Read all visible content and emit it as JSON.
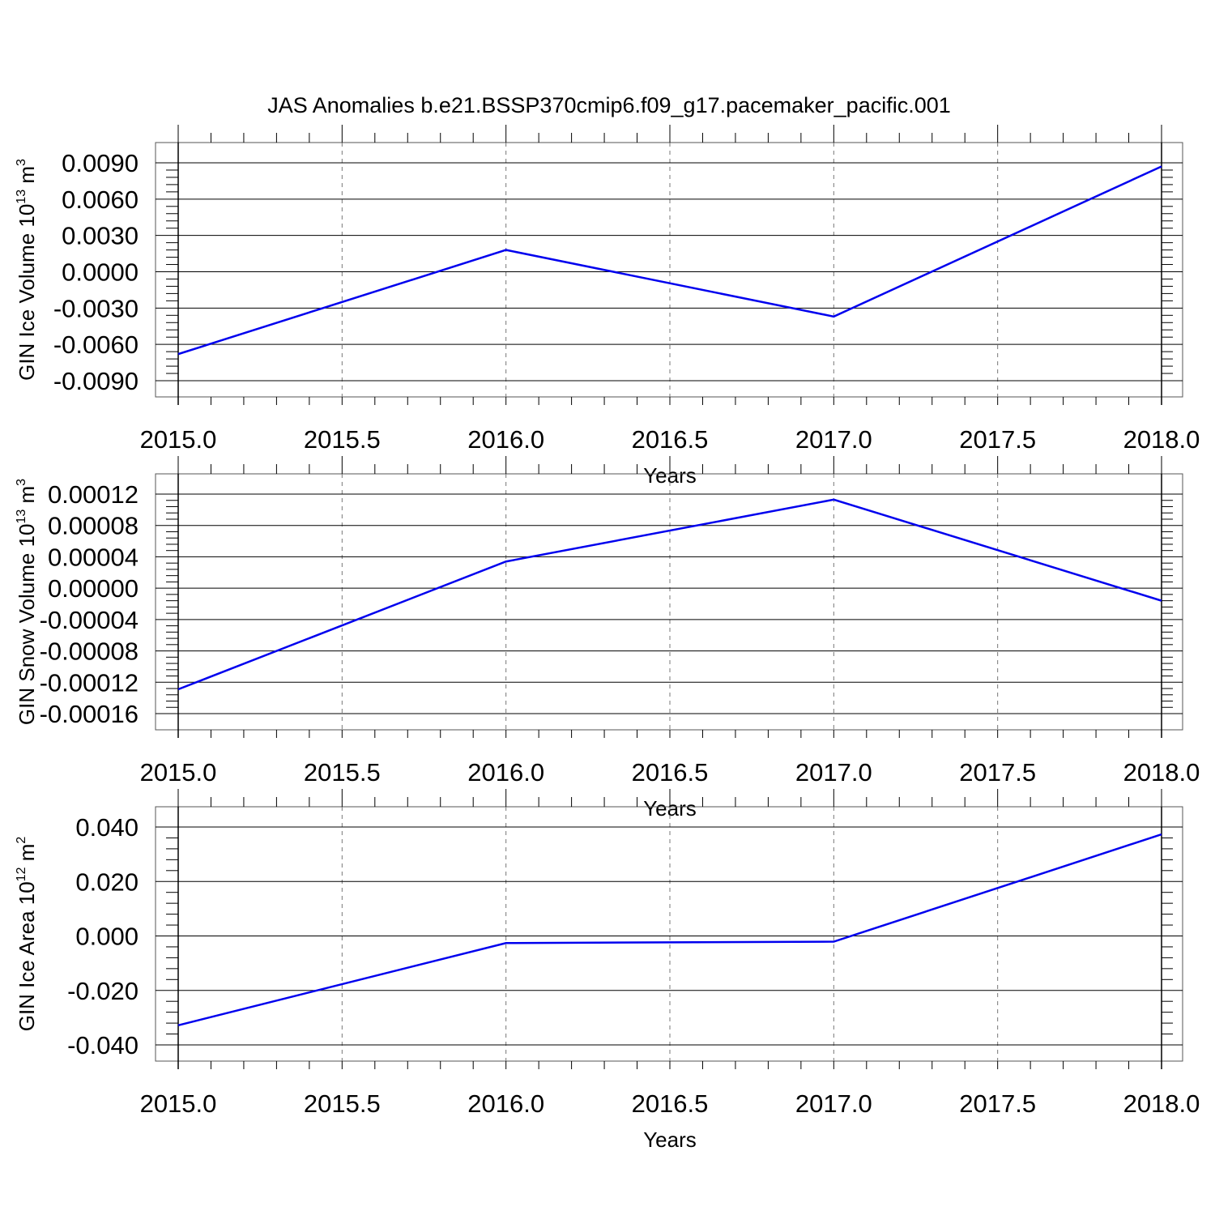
{
  "title": "JAS Anomalies b.e21.BSSP370cmip6.f09_g17.pacemaker_pacific.001",
  "line_color": "#0000ee",
  "chart_data": [
    {
      "type": "line",
      "ylabel": "GIN Ice Volume 10",
      "ylabel_exp": "13",
      "ylabel_unit": " m",
      "ylabel_unit_exp": "3",
      "xlabel": "Years",
      "xlim": [
        2015.0,
        2018.0
      ],
      "ylim": [
        -0.009,
        0.009
      ],
      "x_ticks": [
        2015.0,
        2015.5,
        2016.0,
        2016.5,
        2017.0,
        2017.5,
        2018.0
      ],
      "x_tick_labels": [
        "2015.0",
        "2015.5",
        "2016.0",
        "2016.5",
        "2017.0",
        "2017.5",
        "2018.0"
      ],
      "y_ticks": [
        0.009,
        0.006,
        0.003,
        0.0,
        -0.003,
        -0.006,
        -0.009
      ],
      "y_tick_labels": [
        "0.0090",
        "0.0060",
        "0.0030",
        "0.0000",
        "-0.0030",
        "-0.0060",
        "-0.0090"
      ],
      "grid": "x dashed",
      "x": [
        2015,
        2016,
        2017,
        2018
      ],
      "values": [
        -0.0068,
        0.0018,
        -0.0037,
        0.0087
      ]
    },
    {
      "type": "line",
      "ylabel": "GIN Snow Volume 10",
      "ylabel_exp": "13",
      "ylabel_unit": " m",
      "ylabel_unit_exp": "3",
      "xlabel": "Years",
      "xlim": [
        2015.0,
        2018.0
      ],
      "ylim": [
        -0.00016,
        0.00012
      ],
      "x_ticks": [
        2015.0,
        2015.5,
        2016.0,
        2016.5,
        2017.0,
        2017.5,
        2018.0
      ],
      "x_tick_labels": [
        "2015.0",
        "2015.5",
        "2016.0",
        "2016.5",
        "2017.0",
        "2017.5",
        "2018.0"
      ],
      "y_ticks": [
        0.00012,
        8e-05,
        4e-05,
        0.0,
        -4e-05,
        -8e-05,
        -0.00012,
        -0.00016
      ],
      "y_tick_labels": [
        "0.00012",
        "0.00008",
        "0.00004",
        "0.00000",
        "-0.00004",
        "-0.00008",
        "-0.00012",
        "-0.00016"
      ],
      "grid": "x dashed",
      "x": [
        2015,
        2016,
        2017,
        2018
      ],
      "values": [
        -0.000129,
        3.4e-05,
        0.000113,
        -1.6e-05
      ]
    },
    {
      "type": "line",
      "ylabel": "GIN Ice Area 10",
      "ylabel_exp": "12",
      "ylabel_unit": " m",
      "ylabel_unit_exp": "2",
      "xlabel": "Years",
      "xlim": [
        2015.0,
        2018.0
      ],
      "ylim": [
        -0.04,
        0.04
      ],
      "x_ticks": [
        2015.0,
        2015.5,
        2016.0,
        2016.5,
        2017.0,
        2017.5,
        2018.0
      ],
      "x_tick_labels": [
        "2015.0",
        "2015.5",
        "2016.0",
        "2016.5",
        "2017.0",
        "2017.5",
        "2018.0"
      ],
      "y_ticks": [
        0.04,
        0.02,
        0.0,
        -0.02,
        -0.04
      ],
      "y_tick_labels": [
        "0.040",
        "0.020",
        "0.000",
        "-0.020",
        "-0.040"
      ],
      "grid": "x dashed",
      "x": [
        2015,
        2016,
        2017,
        2018
      ],
      "values": [
        -0.0328,
        -0.0026,
        -0.0021,
        0.0373
      ]
    }
  ]
}
